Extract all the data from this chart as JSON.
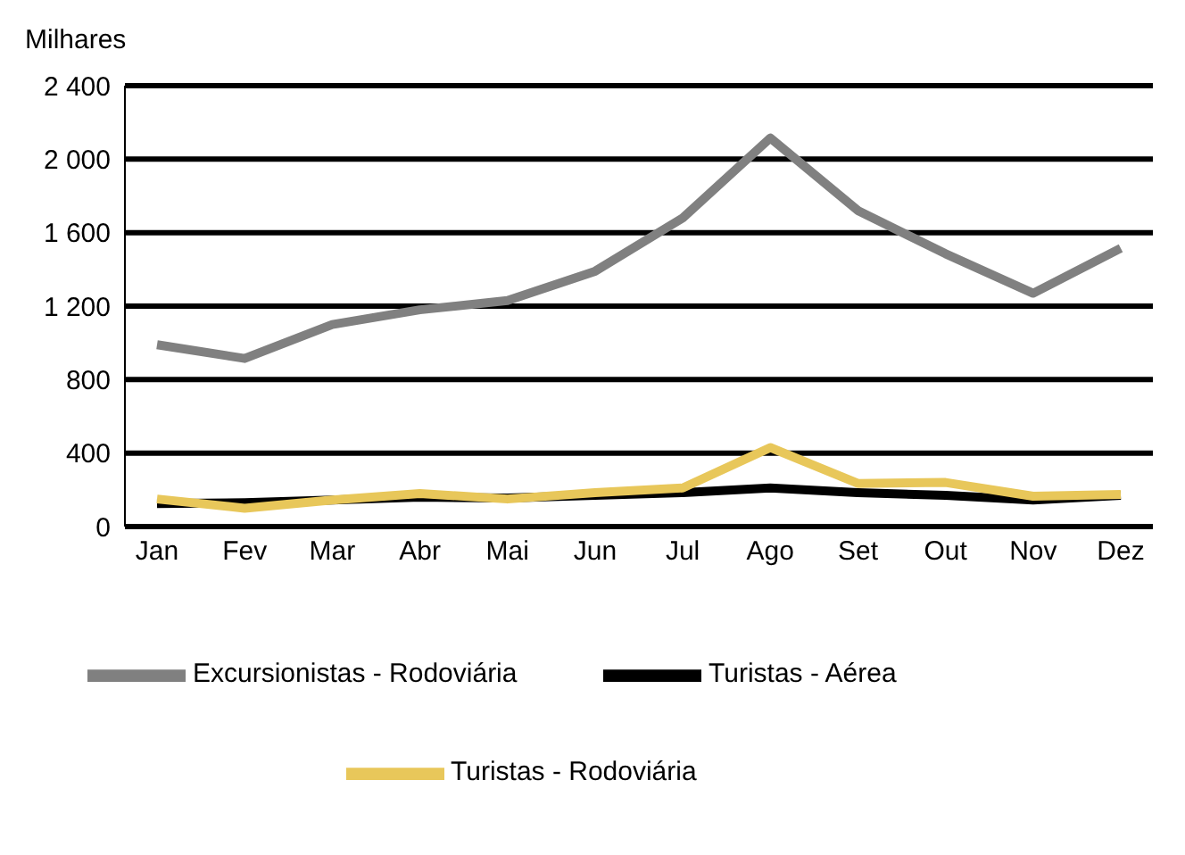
{
  "chart_data": {
    "type": "line",
    "ylabel": "Milhares",
    "categories": [
      "Jan",
      "Fev",
      "Mar",
      "Abr",
      "Mai",
      "Jun",
      "Jul",
      "Ago",
      "Set",
      "Out",
      "Nov",
      "Dez"
    ],
    "series": [
      {
        "name": "Turistas - Aérea",
        "color": "#000000",
        "values": [
          125,
          130,
          145,
          160,
          155,
          170,
          185,
          210,
          185,
          170,
          145,
          170
        ]
      },
      {
        "name": "Turistas - Rodoviária",
        "color": "#e8c75a",
        "values": [
          150,
          100,
          145,
          180,
          150,
          185,
          210,
          430,
          235,
          240,
          165,
          175
        ]
      },
      {
        "name": "Excursionistas - Rodoviária",
        "color": "#808080",
        "values": [
          990,
          915,
          1100,
          1180,
          1230,
          1390,
          1680,
          2115,
          1720,
          1485,
          1270,
          1515
        ]
      }
    ],
    "ylim": [
      0,
      2400
    ],
    "yticks": [
      0,
      {
        "value": 400,
        "label": "400"
      },
      {
        "value": 800,
        "label": "800"
      },
      {
        "value": 1200,
        "label": "1 200"
      },
      {
        "value": 1600,
        "label": "1 600"
      },
      {
        "value": 2000,
        "label": "2 000"
      },
      {
        "value": 2400,
        "label": "2 400"
      }
    ],
    "grid": "y",
    "legend": "bottom",
    "marker": "none",
    "line_style": "solid"
  }
}
